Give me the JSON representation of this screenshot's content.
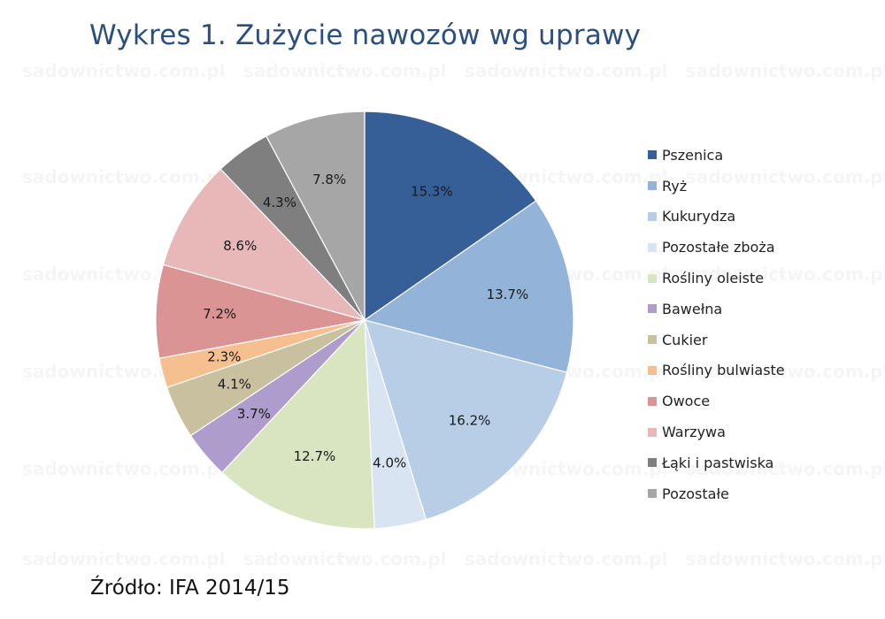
{
  "title": "Wykres 1. Zużycie nawozów wg uprawy",
  "source": "Źródło: IFA 2014/15",
  "watermark": "sadownictwo.com.pl",
  "chart_data": {
    "type": "pie",
    "title": "Wykres 1. Zużycie nawozów wg uprawy",
    "legend_position": "right",
    "slices": [
      {
        "label": "Pszenica",
        "value": 15.3,
        "display": "15.3%",
        "color": "#355f96"
      },
      {
        "label": "Ryż",
        "value": 13.7,
        "display": "13.7%",
        "color": "#93b3d8"
      },
      {
        "label": "Kukurydza",
        "value": 16.2,
        "display": "16.2%",
        "color": "#b8cde6"
      },
      {
        "label": "Pozostałe zboża",
        "value": 4.0,
        "display": "4.0%",
        "color": "#d9e4f2"
      },
      {
        "label": "Rośliny oleiste",
        "value": 12.7,
        "display": "12.7%",
        "color": "#d8e5c0"
      },
      {
        "label": "Bawełna",
        "value": 3.7,
        "display": "3.7%",
        "color": "#ad9ccc"
      },
      {
        "label": "Cukier",
        "value": 4.1,
        "display": "4.1%",
        "color": "#c9c0a0"
      },
      {
        "label": "Rośliny bulwiaste",
        "value": 2.3,
        "display": "2.3%",
        "color": "#f6bf90"
      },
      {
        "label": "Owoce",
        "value": 7.2,
        "display": "7.2%",
        "color": "#da9493"
      },
      {
        "label": "Warzywa",
        "value": 8.6,
        "display": "8.6%",
        "color": "#e8b7b7"
      },
      {
        "label": "Łąki i pastwiska",
        "value": 4.3,
        "display": "4.3%",
        "color": "#7f7f7f"
      },
      {
        "label": "Pozostałe",
        "value": 7.8,
        "display": "7.8%",
        "color": "#a6a6a6"
      }
    ]
  }
}
